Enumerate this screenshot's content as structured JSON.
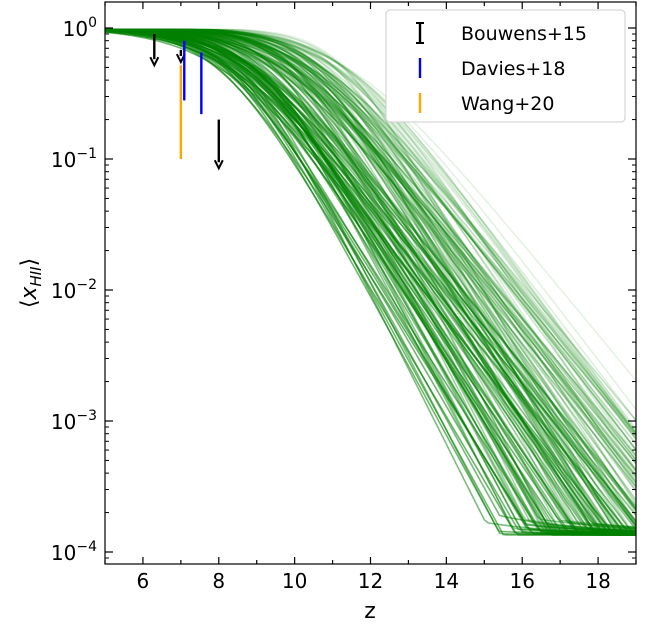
{
  "chart_data": {
    "type": "line",
    "title": "",
    "xlabel": "z",
    "ylabel": "⟨x_HII⟩",
    "xlim": [
      5,
      19
    ],
    "ylim": [
      8e-05,
      1.5
    ],
    "yscale": "log",
    "grid": false,
    "legend_placement": "top-right",
    "x_ticks": [
      6,
      8,
      10,
      12,
      14,
      16,
      18
    ],
    "y_ticks": [
      {
        "value": 1,
        "base": "10",
        "exp": "0"
      },
      {
        "value": 0.1,
        "base": "10",
        "exp": "−1"
      },
      {
        "value": 0.01,
        "base": "10",
        "exp": "−2"
      },
      {
        "value": 0.001,
        "base": "10",
        "exp": "−3"
      },
      {
        "value": 0.0001,
        "base": "10",
        "exp": "−4"
      }
    ],
    "model_ensemble": {
      "color": "#008000",
      "count": 160,
      "z_mid_range": [
        7.9,
        11.4
      ],
      "width_range": [
        0.75,
        1.25
      ],
      "floor_range": [
        0.0001,
        0.00045
      ],
      "high_z_value": 0.000135,
      "high_z_decay_range": [
        1.4,
        2.8
      ]
    },
    "observations": [
      {
        "name": "Bouwens+15",
        "color": "#000000",
        "type": "upper_limit",
        "points": [
          {
            "z": 6.3,
            "top": 0.9,
            "bottom": 0.52
          },
          {
            "z": 7.0,
            "top": 0.68,
            "bottom": 0.55
          },
          {
            "z": 8.0,
            "top": 0.2,
            "bottom": 0.085
          }
        ]
      },
      {
        "name": "Davies+18",
        "color": "#0000ff",
        "type": "range",
        "points": [
          {
            "z": 7.09,
            "top": 0.8,
            "bottom": 0.28
          },
          {
            "z": 7.54,
            "top": 0.65,
            "bottom": 0.22
          }
        ]
      },
      {
        "name": "Wang+20",
        "color": "#ffa500",
        "type": "range",
        "points": [
          {
            "z": 7.0,
            "top": 0.52,
            "bottom": 0.1
          }
        ]
      }
    ],
    "legend": [
      "Bouwens+15",
      "Davies+18",
      "Wang+20"
    ]
  }
}
